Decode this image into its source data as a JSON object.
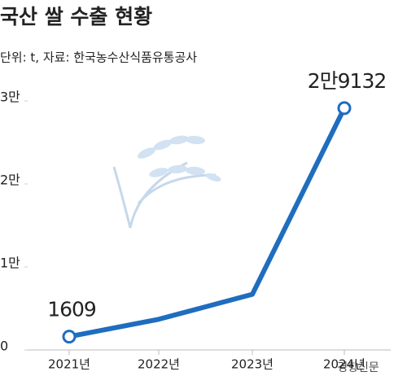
{
  "chart_data": {
    "type": "line",
    "title": "국산 쌀 수출 현황",
    "subtitle": "단위: t, 자료: 한국농수산식품유통공사",
    "categories": [
      "2021년",
      "2022년",
      "2023년",
      "2024년"
    ],
    "values": [
      1609,
      3700,
      6700,
      29132
    ],
    "value_labels": [
      null,
      null,
      null,
      "2만9132"
    ],
    "color": "#1f6dbf",
    "ylim": [
      0,
      30000
    ],
    "yticks": [
      0,
      {
        "value": 10000,
        "label": "1만"
      },
      {
        "value": 20000,
        "label": "2만"
      },
      {
        "value": 30000,
        "label": "3만"
      }
    ],
    "grid": false,
    "watermark": "경향신문"
  }
}
